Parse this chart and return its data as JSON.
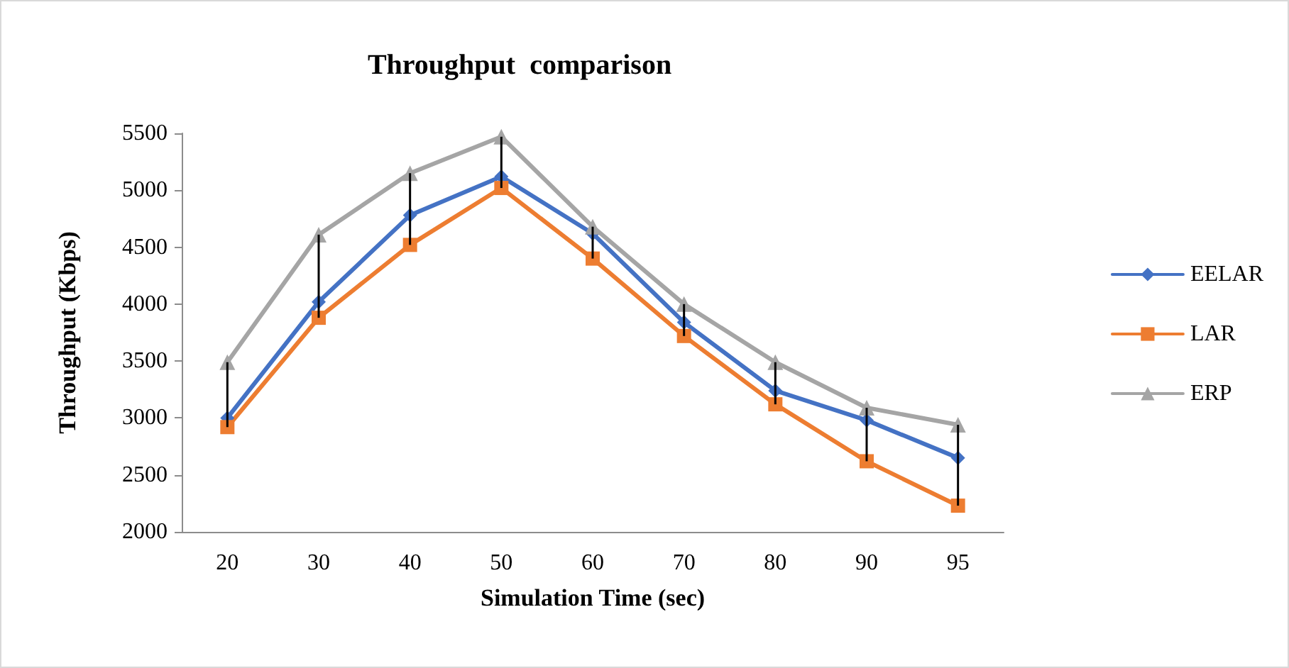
{
  "chart_data": {
    "type": "line",
    "title": "Throughput  comparison",
    "xlabel": "Simulation Time (sec)",
    "ylabel": "Throughput (Kbps)",
    "categories": [
      "20",
      "30",
      "40",
      "50",
      "60",
      "70",
      "80",
      "90",
      "95"
    ],
    "series": [
      {
        "name": "EELAR",
        "color": "#4472c4",
        "marker": "diamond",
        "values": [
          3000,
          4020,
          4780,
          5120,
          4620,
          3840,
          3240,
          2980,
          2650
        ]
      },
      {
        "name": "LAR",
        "color": "#ed7d31",
        "marker": "square",
        "values": [
          2920,
          3880,
          4520,
          5020,
          4400,
          3720,
          3120,
          2620,
          2230
        ]
      },
      {
        "name": "ERP",
        "color": "#a5a5a5",
        "marker": "triangle",
        "values": [
          3490,
          4610,
          5150,
          5470,
          4680,
          4000,
          3490,
          3090,
          2940
        ],
        "errors": [
          [
            2920,
            3490
          ],
          [
            3880,
            4610
          ],
          [
            4520,
            5150
          ],
          [
            5020,
            5470
          ],
          [
            4400,
            4680
          ],
          [
            3720,
            4000
          ],
          [
            3120,
            3490
          ],
          [
            2620,
            3090
          ],
          [
            2230,
            2940
          ]
        ]
      }
    ],
    "ylim": [
      2000,
      5500
    ],
    "yticks": [
      2000,
      2500,
      3000,
      3500,
      4000,
      4500,
      5000,
      5500
    ],
    "grid": false,
    "legend": "right",
    "line_style": "solid"
  }
}
